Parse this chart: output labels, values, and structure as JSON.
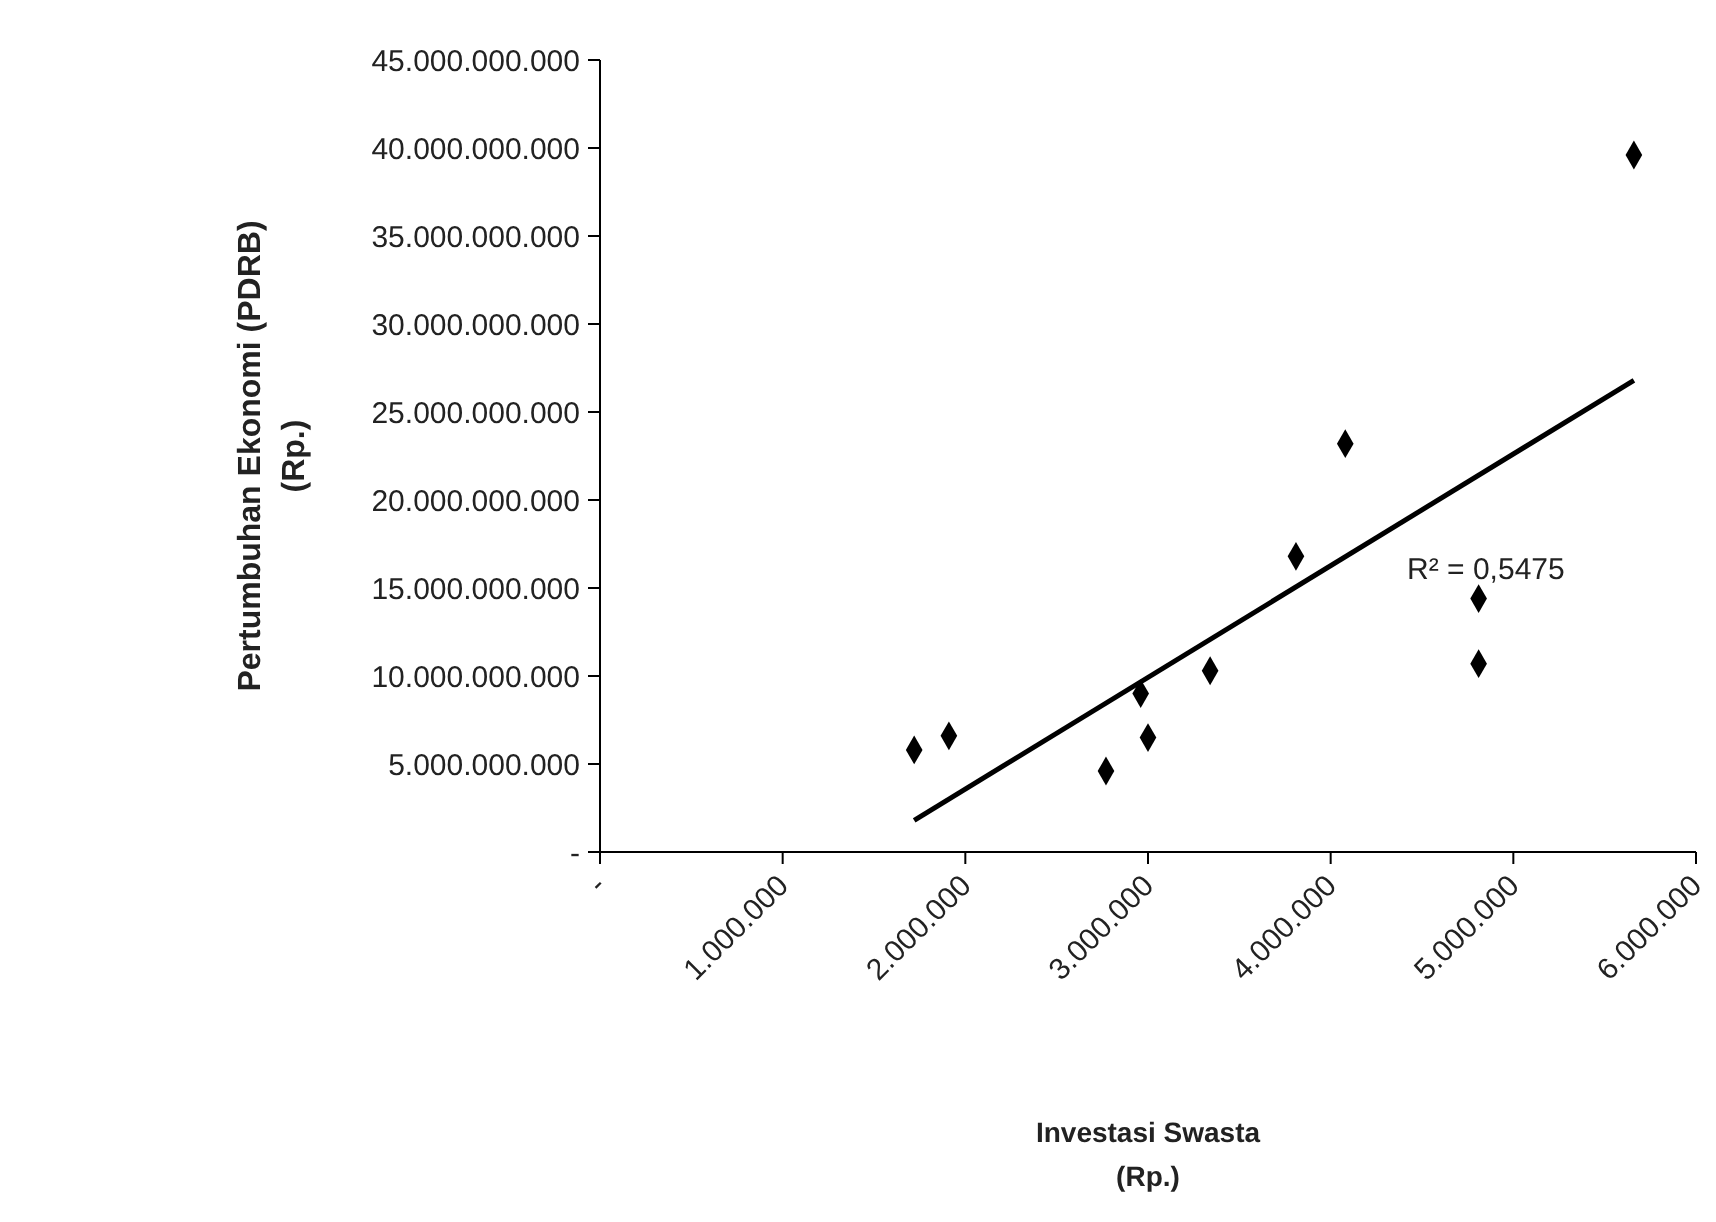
{
  "chart_data": {
    "type": "scatter",
    "xlabel": "Investasi Swasta\n(Rp.)",
    "ylabel": "Pertumbuhan Ekonomi (PDRB)\n(Rp.)",
    "xlim": [
      0,
      6000000
    ],
    "ylim": [
      0,
      45000000000
    ],
    "xticks": [
      {
        "value": 0,
        "label": "-"
      },
      {
        "value": 1000000,
        "label": "1.000.000"
      },
      {
        "value": 2000000,
        "label": "2.000.000"
      },
      {
        "value": 3000000,
        "label": "3.000.000"
      },
      {
        "value": 4000000,
        "label": "4.000.000"
      },
      {
        "value": 5000000,
        "label": "5.000.000"
      },
      {
        "value": 6000000,
        "label": "6.000.000"
      }
    ],
    "yticks": [
      {
        "value": 0,
        "label": "-"
      },
      {
        "value": 5000000000,
        "label": "5.000.000.000"
      },
      {
        "value": 10000000000,
        "label": "10.000.000.000"
      },
      {
        "value": 15000000000,
        "label": "15.000.000.000"
      },
      {
        "value": 20000000000,
        "label": "20.000.000.000"
      },
      {
        "value": 25000000000,
        "label": "25.000.000.000"
      },
      {
        "value": 30000000000,
        "label": "30.000.000.000"
      },
      {
        "value": 35000000000,
        "label": "35.000.000.000"
      },
      {
        "value": 40000000000,
        "label": "40.000.000.000"
      },
      {
        "value": 45000000000,
        "label": "45.000.000.000"
      }
    ],
    "grid": false,
    "marker": "diamond",
    "series": [
      {
        "color": "#000000",
        "x": [
          1720000,
          1910000,
          2770000,
          2960000,
          3000000,
          3340000,
          3810000,
          4080000,
          4810000,
          4810000,
          5660000
        ],
        "values": [
          5800000000,
          6600000000,
          4600000000,
          9000000000,
          6500000000,
          10300000000,
          16800000000,
          23200000000,
          14400000000,
          10700000000,
          39600000000
        ]
      },
      {
        "type": "line",
        "color": "#000000",
        "line_style": "solid",
        "marker": "none",
        "x": [
          1720000,
          5660000
        ],
        "values": [
          1800000000,
          26800000000
        ]
      }
    ],
    "annotations": [
      {
        "text": "R² = 0,5475",
        "x": 4850000,
        "y": 15500000000
      }
    ]
  }
}
